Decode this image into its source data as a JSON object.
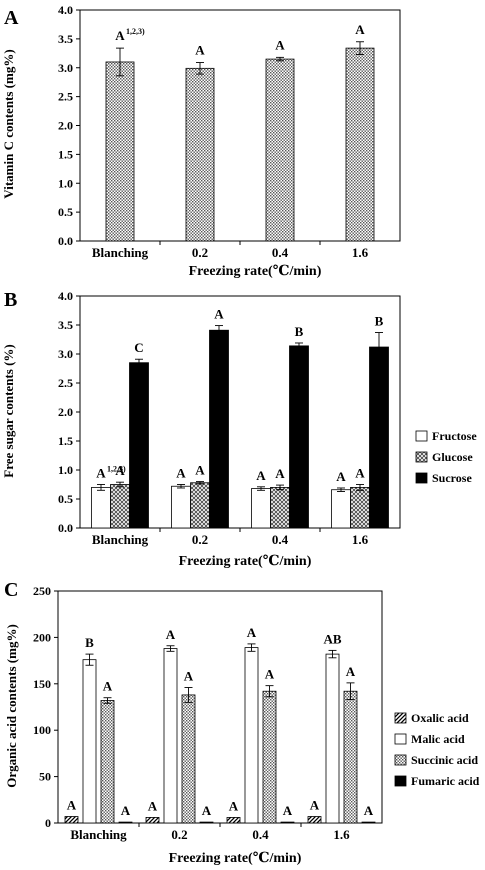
{
  "chart_data": [
    {
      "type": "bar",
      "panel_label": "A",
      "title": "",
      "categories": [
        "Blanching",
        "0.2",
        "0.4",
        "1.6"
      ],
      "xlabel": "Freezing rate(℃/min)",
      "ylabel": "Vitamin C contents (mg%)",
      "ylim": [
        0,
        4
      ],
      "yticks": [
        "0.0",
        "0.5",
        "1.0",
        "1.5",
        "2.0",
        "2.5",
        "3.0",
        "3.5",
        "4.0"
      ],
      "series": [
        {
          "values": [
            3.1,
            2.99,
            3.15,
            3.34
          ],
          "errors": [
            0.24,
            0.1,
            0.03,
            0.11
          ],
          "letters": [
            "A",
            "A",
            "A",
            "A"
          ],
          "color": "#d8d8d8",
          "pattern": "dots"
        }
      ],
      "footnote_mark": "1,2,3)"
    },
    {
      "type": "bar",
      "panel_label": "B",
      "title": "",
      "categories": [
        "Blanching",
        "0.2",
        "0.4",
        "1.6"
      ],
      "xlabel": "Freezing rate(℃/min)",
      "ylabel": "Free sugar contents (%)",
      "ylim": [
        0,
        4
      ],
      "yticks": [
        "0.0",
        "0.5",
        "1.0",
        "1.5",
        "2.0",
        "2.5",
        "3.0",
        "3.5",
        "4.0"
      ],
      "legend_position": "right",
      "series": [
        {
          "name": "Fructose",
          "values": [
            0.7,
            0.72,
            0.68,
            0.66
          ],
          "errors": [
            0.05,
            0.03,
            0.03,
            0.03
          ],
          "letters": [
            "A",
            "A",
            "A",
            "A"
          ],
          "color": "#ffffff",
          "pattern": "none"
        },
        {
          "name": "Glucose",
          "values": [
            0.75,
            0.78,
            0.7,
            0.7
          ],
          "errors": [
            0.04,
            0.02,
            0.04,
            0.05
          ],
          "letters": [
            "A",
            "A",
            "A",
            "A"
          ],
          "color": "#d0d0d0",
          "pattern": "crosshatch"
        },
        {
          "name": "Sucrose",
          "values": [
            2.85,
            3.41,
            3.14,
            3.12
          ],
          "errors": [
            0.06,
            0.08,
            0.05,
            0.25
          ],
          "letters": [
            "C",
            "A",
            "B",
            "B"
          ],
          "color": "#000000",
          "pattern": "none"
        }
      ],
      "footnote_mark": "1,2,3)"
    },
    {
      "type": "bar",
      "panel_label": "C",
      "title": "",
      "categories": [
        "Blanching",
        "0.2",
        "0.4",
        "1.6"
      ],
      "xlabel": "Freezing rate(℃/min)",
      "ylabel": "Organic acid contents (mg%)",
      "ylim": [
        0,
        250
      ],
      "yticks": [
        "0",
        "50",
        "100",
        "150",
        "200",
        "250"
      ],
      "legend_position": "right",
      "series": [
        {
          "name": "Oxalic acid",
          "values": [
            7,
            6,
            6,
            7
          ],
          "errors": [
            0,
            0,
            0,
            0
          ],
          "letters": [
            "A",
            "A",
            "A",
            "A"
          ],
          "color": "#808080",
          "pattern": "diagonal"
        },
        {
          "name": "Malic acid",
          "values": [
            176,
            188,
            189,
            182
          ],
          "errors": [
            6,
            3,
            4,
            4
          ],
          "letters": [
            "B",
            "A",
            "A",
            "AB"
          ],
          "color": "#ffffff",
          "pattern": "none"
        },
        {
          "name": "Succinic acid",
          "values": [
            132,
            138,
            142,
            142
          ],
          "errors": [
            3,
            8,
            6,
            9
          ],
          "letters": [
            "A",
            "A",
            "A",
            "A"
          ],
          "color": "#d0d0d0",
          "pattern": "dots"
        },
        {
          "name": "Fumaric acid",
          "values": [
            1,
            1,
            1,
            1
          ],
          "errors": [
            0,
            0,
            0,
            0
          ],
          "letters": [
            "A",
            "A",
            "A",
            "A"
          ],
          "color": "#000000",
          "pattern": "none"
        }
      ]
    }
  ]
}
